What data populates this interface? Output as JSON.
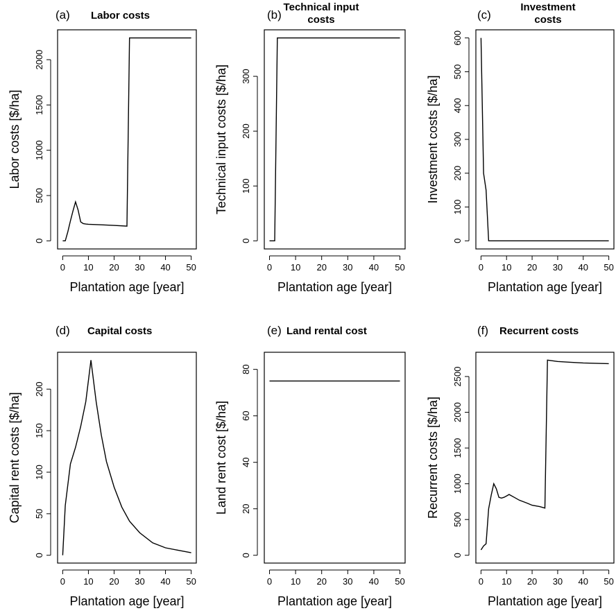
{
  "chart_data": [
    {
      "type": "line",
      "letter": "(a)",
      "title": "Labor costs",
      "xlabel": "Plantation age [year]",
      "ylabel": "Labor costs [$/ha]",
      "xlim": [
        0,
        50
      ],
      "ylim": [
        0,
        2240
      ],
      "xticks": [
        0,
        10,
        20,
        30,
        40,
        50
      ],
      "yticks": [
        0,
        500,
        1000,
        1500,
        2000
      ],
      "x": [
        0,
        1,
        2,
        3,
        4,
        5,
        6,
        7,
        8,
        9,
        10,
        15,
        20,
        25,
        26,
        30,
        35,
        40,
        45,
        50
      ],
      "y": [
        0,
        0,
        100,
        220,
        330,
        430,
        340,
        210,
        190,
        185,
        183,
        177,
        170,
        162,
        2240,
        2240,
        2240,
        2240,
        2240,
        2240
      ]
    },
    {
      "type": "line",
      "letter": "(b)",
      "title": "Technical input costs",
      "xlabel": "Plantation age [year]",
      "ylabel": "Technical input costs [$/ha]",
      "xlim": [
        0,
        50
      ],
      "ylim": [
        0,
        370
      ],
      "xticks": [
        0,
        10,
        20,
        30,
        40,
        50
      ],
      "yticks": [
        0,
        100,
        200,
        300
      ],
      "x": [
        0,
        2,
        3,
        10,
        20,
        30,
        40,
        50
      ],
      "y": [
        0,
        0,
        370,
        370,
        370,
        370,
        370,
        370
      ]
    },
    {
      "type": "line",
      "letter": "(c)",
      "title": "Investment costs",
      "xlabel": "Plantation age [year]",
      "ylabel": "Investment costs [$/ha]",
      "xlim": [
        0,
        50
      ],
      "ylim": [
        0,
        600
      ],
      "xticks": [
        0,
        10,
        20,
        30,
        40,
        50
      ],
      "yticks": [
        0,
        100,
        200,
        300,
        400,
        500,
        600
      ],
      "x": [
        0,
        1,
        2,
        3,
        10,
        20,
        30,
        40,
        50
      ],
      "y": [
        600,
        200,
        150,
        0,
        0,
        0,
        0,
        0,
        0
      ]
    },
    {
      "type": "line",
      "letter": "(d)",
      "title": "Capital costs",
      "xlabel": "Plantation age [year]",
      "ylabel": "Capital rent costs [$/ha]",
      "xlim": [
        0,
        50
      ],
      "ylim": [
        0,
        235
      ],
      "xticks": [
        0,
        10,
        20,
        30,
        40,
        50
      ],
      "yticks": [
        0,
        50,
        100,
        150,
        200
      ],
      "x": [
        0,
        1,
        3,
        5,
        7,
        9,
        11,
        13,
        15,
        17,
        20,
        23,
        26,
        30,
        35,
        40,
        45,
        50
      ],
      "y": [
        0,
        60,
        110,
        130,
        155,
        185,
        235,
        185,
        145,
        113,
        82,
        58,
        41,
        27,
        15,
        9,
        6,
        3
      ]
    },
    {
      "type": "line",
      "letter": "(e)",
      "title": "Land rental cost",
      "xlabel": "Plantation age [year]",
      "ylabel": "Land rent cost [$/ha]",
      "xlim": [
        0,
        50
      ],
      "ylim": [
        0,
        84
      ],
      "xticks": [
        0,
        10,
        20,
        30,
        40,
        50
      ],
      "yticks": [
        0,
        20,
        40,
        60,
        80
      ],
      "x": [
        0,
        50
      ],
      "y": [
        75,
        75
      ]
    },
    {
      "type": "line",
      "letter": "(f)",
      "title": "Recurrent costs",
      "xlabel": "Plantation age [year]",
      "ylabel": "Recurrent costs [$/ha]",
      "xlim": [
        0,
        50
      ],
      "ylim": [
        0,
        2730
      ],
      "xticks": [
        0,
        10,
        20,
        30,
        40,
        50
      ],
      "yticks": [
        0,
        500,
        1000,
        1500,
        2000,
        2500
      ],
      "x": [
        0,
        1,
        2,
        3,
        4,
        5,
        6,
        7,
        8,
        9,
        10,
        11,
        13,
        15,
        18,
        20,
        23,
        25,
        26,
        28,
        30,
        35,
        40,
        45,
        50
      ],
      "y": [
        75,
        130,
        160,
        650,
        840,
        1000,
        930,
        810,
        800,
        810,
        830,
        850,
        810,
        770,
        730,
        700,
        680,
        660,
        2730,
        2720,
        2710,
        2700,
        2690,
        2685,
        2680
      ]
    }
  ]
}
